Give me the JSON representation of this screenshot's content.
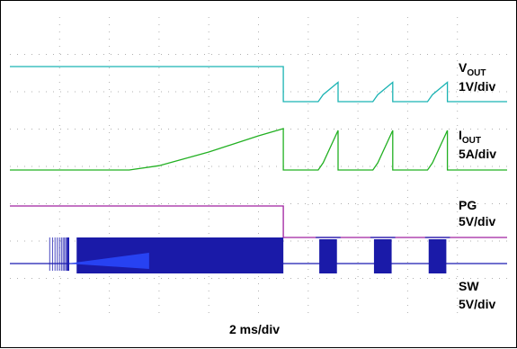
{
  "chart_data": {
    "type": "line",
    "xlabel": "2 ms/div",
    "grid": true,
    "x_divisions": 10,
    "y_divisions": 8,
    "channels": [
      {
        "name": "VOUT",
        "name_main": "V",
        "name_sub": "OUT",
        "scale": "1V/div",
        "color": "#1bb3b3",
        "description_points": [
          [
            0,
            3.0
          ],
          [
            5.5,
            3.0
          ],
          [
            5.5,
            1.0
          ],
          [
            6.2,
            1.0
          ],
          [
            6.3,
            1.4
          ],
          [
            6.6,
            2.1
          ],
          [
            6.6,
            1.0
          ],
          [
            7.3,
            1.0
          ],
          [
            7.4,
            1.4
          ],
          [
            7.7,
            2.1
          ],
          [
            7.7,
            1.0
          ],
          [
            8.4,
            1.0
          ],
          [
            8.5,
            1.4
          ],
          [
            8.8,
            2.1
          ],
          [
            8.8,
            1.0
          ],
          [
            10,
            1.0
          ]
        ]
      },
      {
        "name": "IOUT",
        "name_main": "I",
        "name_sub": "OUT",
        "scale": "5A/div",
        "color": "#22b022",
        "description_points": [
          [
            0,
            0.0
          ],
          [
            2.4,
            0.0
          ],
          [
            3.0,
            0.12
          ],
          [
            4.0,
            0.5
          ],
          [
            5.0,
            0.95
          ],
          [
            5.5,
            1.15
          ],
          [
            5.5,
            0.0
          ],
          [
            6.2,
            0.0
          ],
          [
            6.3,
            0.2
          ],
          [
            6.6,
            1.1
          ],
          [
            6.6,
            0.0
          ],
          [
            7.3,
            0.0
          ],
          [
            7.4,
            0.2
          ],
          [
            7.7,
            1.1
          ],
          [
            7.7,
            0.0
          ],
          [
            8.4,
            0.0
          ],
          [
            8.5,
            0.2
          ],
          [
            8.8,
            1.1
          ],
          [
            8.8,
            0.0
          ],
          [
            10,
            0.0
          ]
        ]
      },
      {
        "name": "PG",
        "scale": "5V/div",
        "color": "#a020a0",
        "description_points": [
          [
            0,
            1.0
          ],
          [
            5.5,
            1.0
          ],
          [
            5.5,
            0.0
          ],
          [
            10,
            0.0
          ]
        ]
      },
      {
        "name": "SW",
        "scale": "5V/div",
        "color": "#1a1ab0",
        "switching_bursts_div": [
          [
            0.8,
            5.5
          ],
          [
            6.15,
            6.65
          ],
          [
            7.25,
            7.75
          ],
          [
            8.35,
            8.85
          ]
        ]
      }
    ]
  }
}
